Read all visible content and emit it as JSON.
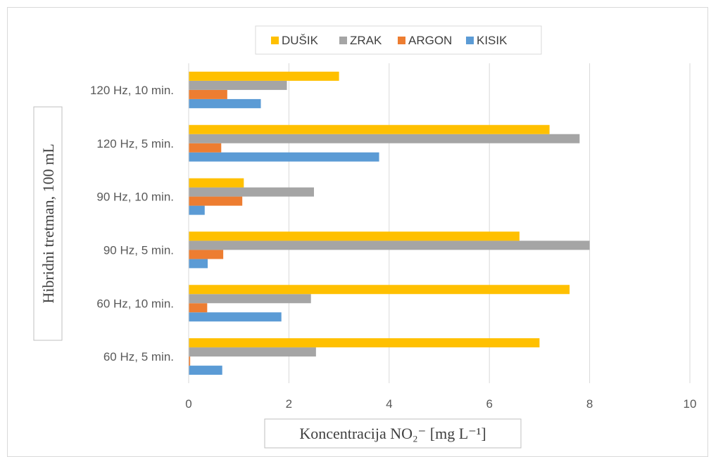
{
  "chart_data": {
    "type": "bar",
    "orientation": "horizontal",
    "categories": [
      "60 Hz, 5 min.",
      "60 Hz, 10 min.",
      "90 Hz, 5 min.",
      "90 Hz, 10 min.",
      "120 Hz, 5 min.",
      "120 Hz, 10 min."
    ],
    "series": [
      {
        "name": "KISIK",
        "color": "#5b9bd5",
        "values": [
          0.67,
          1.85,
          0.38,
          0.32,
          3.8,
          1.44
        ]
      },
      {
        "name": "ARGON",
        "color": "#ed7d31",
        "values": [
          0.03,
          0.37,
          0.69,
          1.07,
          0.65,
          0.77
        ]
      },
      {
        "name": "ZRAK",
        "color": "#a5a5a5",
        "values": [
          2.54,
          2.44,
          8.0,
          2.5,
          7.8,
          1.96
        ]
      },
      {
        "name": "DUŠIK",
        "color": "#ffc000",
        "values": [
          7.0,
          7.6,
          6.6,
          1.1,
          7.2,
          3.0
        ]
      }
    ],
    "legend_order": [
      "DUŠIK",
      "ZRAK",
      "ARGON",
      "KISIK"
    ],
    "legend_position": "top",
    "xlabel": "Koncentracija NO₂⁻ [mg L⁻¹]",
    "ylabel": "Hibridni tretman, 100 mL",
    "xlim": [
      0,
      10
    ],
    "xticks": [
      "0",
      "2",
      "4",
      "6",
      "8",
      "10"
    ],
    "grid": true
  }
}
